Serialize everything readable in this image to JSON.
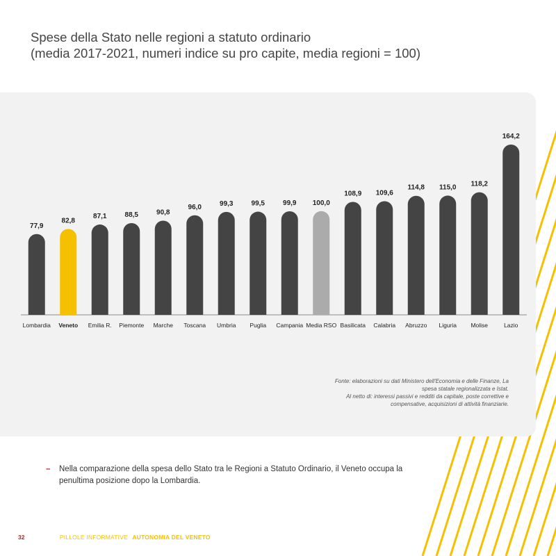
{
  "title": {
    "line1": "Spese della Stato nelle regioni a statuto ordinario",
    "line2": "(media 2017-2021, numeri indice su pro capite, media regioni = 100)"
  },
  "chart_data": {
    "type": "bar",
    "title": "Spese della Stato nelle regioni a statuto ordinario (media 2017-2021, numeri indice su pro capite, media regioni = 100)",
    "xlabel": "",
    "ylabel": "",
    "ylim": [
      0,
      170
    ],
    "grid": false,
    "categories": [
      "Lombardia",
      "Veneto",
      "Emilia R.",
      "Piemonte",
      "Marche",
      "Toscana",
      "Umbria",
      "Puglia",
      "Campania",
      "Media RSO",
      "Basilicata",
      "Calabria",
      "Abruzzo",
      "Liguria",
      "Molise",
      "Lazio"
    ],
    "values": [
      77.9,
      82.8,
      87.1,
      88.5,
      90.8,
      96.0,
      99.3,
      99.5,
      99.9,
      100.0,
      108.9,
      109.6,
      114.8,
      115.0,
      118.2,
      164.2
    ],
    "value_labels": [
      "77,9",
      "82,8",
      "87,1",
      "88,5",
      "90,8",
      "96,0",
      "99,3",
      "99,5",
      "99,9",
      "100,0",
      "108,9",
      "109,6",
      "114,8",
      "115,0",
      "118,2",
      "164,2"
    ],
    "highlight": {
      "Veneto": "#f5c000",
      "Media RSO": "#ababab"
    },
    "bar_color": "#444444",
    "bold_categories": [
      "Veneto"
    ]
  },
  "source": {
    "line1": "Fonte: elaborazioni su dati Ministero dell'Economia e delle Finanze, La",
    "line2": "spesa statale regionalizzata e Istat.",
    "line3": "Al netto di: interessi passivi e redditi da capitale, poste correttive e",
    "line4": "compensative, acquisizioni di attività finanziarie."
  },
  "note": {
    "dash": "–",
    "text": "Nella comparazione della spesa dello Stato tra le Regioni a Statuto Ordinario, il Veneto occupa la penultima posizione dopo la Lombardia."
  },
  "footer": {
    "page_number": "32",
    "publication": "PILLOLE INFORMATIVE",
    "series": "AUTONOMIA DEL VENETO"
  },
  "colors": {
    "accent_yellow": "#f5c000",
    "accent_red": "#b3261e",
    "panel_bg": "#f2f2f2"
  }
}
